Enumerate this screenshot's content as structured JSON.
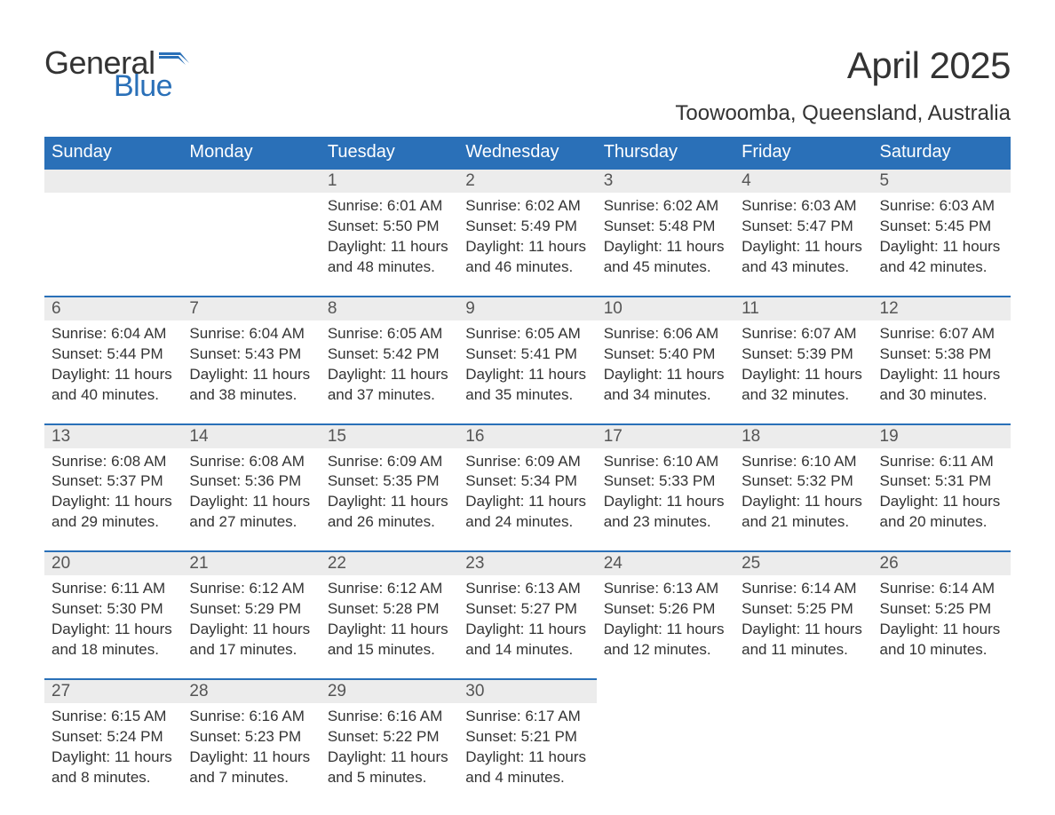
{
  "logo": {
    "word1": "General",
    "word2": "Blue"
  },
  "title": "April 2025",
  "subtitle": "Toowoomba, Queensland, Australia",
  "colors": {
    "brand_blue": "#2a70b8",
    "header_bg": "#2a70b8",
    "header_text": "#ffffff",
    "daynum_bg": "#ececec",
    "daynum_text": "#555555",
    "body_text": "#333333",
    "page_bg": "#ffffff"
  },
  "columns": [
    "Sunday",
    "Monday",
    "Tuesday",
    "Wednesday",
    "Thursday",
    "Friday",
    "Saturday"
  ],
  "weeks": [
    [
      null,
      null,
      {
        "n": "1",
        "sunrise": "6:01 AM",
        "sunset": "5:50 PM",
        "dl": "11 hours and 48 minutes."
      },
      {
        "n": "2",
        "sunrise": "6:02 AM",
        "sunset": "5:49 PM",
        "dl": "11 hours and 46 minutes."
      },
      {
        "n": "3",
        "sunrise": "6:02 AM",
        "sunset": "5:48 PM",
        "dl": "11 hours and 45 minutes."
      },
      {
        "n": "4",
        "sunrise": "6:03 AM",
        "sunset": "5:47 PM",
        "dl": "11 hours and 43 minutes."
      },
      {
        "n": "5",
        "sunrise": "6:03 AM",
        "sunset": "5:45 PM",
        "dl": "11 hours and 42 minutes."
      }
    ],
    [
      {
        "n": "6",
        "sunrise": "6:04 AM",
        "sunset": "5:44 PM",
        "dl": "11 hours and 40 minutes."
      },
      {
        "n": "7",
        "sunrise": "6:04 AM",
        "sunset": "5:43 PM",
        "dl": "11 hours and 38 minutes."
      },
      {
        "n": "8",
        "sunrise": "6:05 AM",
        "sunset": "5:42 PM",
        "dl": "11 hours and 37 minutes."
      },
      {
        "n": "9",
        "sunrise": "6:05 AM",
        "sunset": "5:41 PM",
        "dl": "11 hours and 35 minutes."
      },
      {
        "n": "10",
        "sunrise": "6:06 AM",
        "sunset": "5:40 PM",
        "dl": "11 hours and 34 minutes."
      },
      {
        "n": "11",
        "sunrise": "6:07 AM",
        "sunset": "5:39 PM",
        "dl": "11 hours and 32 minutes."
      },
      {
        "n": "12",
        "sunrise": "6:07 AM",
        "sunset": "5:38 PM",
        "dl": "11 hours and 30 minutes."
      }
    ],
    [
      {
        "n": "13",
        "sunrise": "6:08 AM",
        "sunset": "5:37 PM",
        "dl": "11 hours and 29 minutes."
      },
      {
        "n": "14",
        "sunrise": "6:08 AM",
        "sunset": "5:36 PM",
        "dl": "11 hours and 27 minutes."
      },
      {
        "n": "15",
        "sunrise": "6:09 AM",
        "sunset": "5:35 PM",
        "dl": "11 hours and 26 minutes."
      },
      {
        "n": "16",
        "sunrise": "6:09 AM",
        "sunset": "5:34 PM",
        "dl": "11 hours and 24 minutes."
      },
      {
        "n": "17",
        "sunrise": "6:10 AM",
        "sunset": "5:33 PM",
        "dl": "11 hours and 23 minutes."
      },
      {
        "n": "18",
        "sunrise": "6:10 AM",
        "sunset": "5:32 PM",
        "dl": "11 hours and 21 minutes."
      },
      {
        "n": "19",
        "sunrise": "6:11 AM",
        "sunset": "5:31 PM",
        "dl": "11 hours and 20 minutes."
      }
    ],
    [
      {
        "n": "20",
        "sunrise": "6:11 AM",
        "sunset": "5:30 PM",
        "dl": "11 hours and 18 minutes."
      },
      {
        "n": "21",
        "sunrise": "6:12 AM",
        "sunset": "5:29 PM",
        "dl": "11 hours and 17 minutes."
      },
      {
        "n": "22",
        "sunrise": "6:12 AM",
        "sunset": "5:28 PM",
        "dl": "11 hours and 15 minutes."
      },
      {
        "n": "23",
        "sunrise": "6:13 AM",
        "sunset": "5:27 PM",
        "dl": "11 hours and 14 minutes."
      },
      {
        "n": "24",
        "sunrise": "6:13 AM",
        "sunset": "5:26 PM",
        "dl": "11 hours and 12 minutes."
      },
      {
        "n": "25",
        "sunrise": "6:14 AM",
        "sunset": "5:25 PM",
        "dl": "11 hours and 11 minutes."
      },
      {
        "n": "26",
        "sunrise": "6:14 AM",
        "sunset": "5:25 PM",
        "dl": "11 hours and 10 minutes."
      }
    ],
    [
      {
        "n": "27",
        "sunrise": "6:15 AM",
        "sunset": "5:24 PM",
        "dl": "11 hours and 8 minutes."
      },
      {
        "n": "28",
        "sunrise": "6:16 AM",
        "sunset": "5:23 PM",
        "dl": "11 hours and 7 minutes."
      },
      {
        "n": "29",
        "sunrise": "6:16 AM",
        "sunset": "5:22 PM",
        "dl": "11 hours and 5 minutes."
      },
      {
        "n": "30",
        "sunrise": "6:17 AM",
        "sunset": "5:21 PM",
        "dl": "11 hours and 4 minutes."
      },
      null,
      null,
      null
    ]
  ],
  "labels": {
    "sunrise": "Sunrise: ",
    "sunset": "Sunset: ",
    "daylight": "Daylight: "
  }
}
